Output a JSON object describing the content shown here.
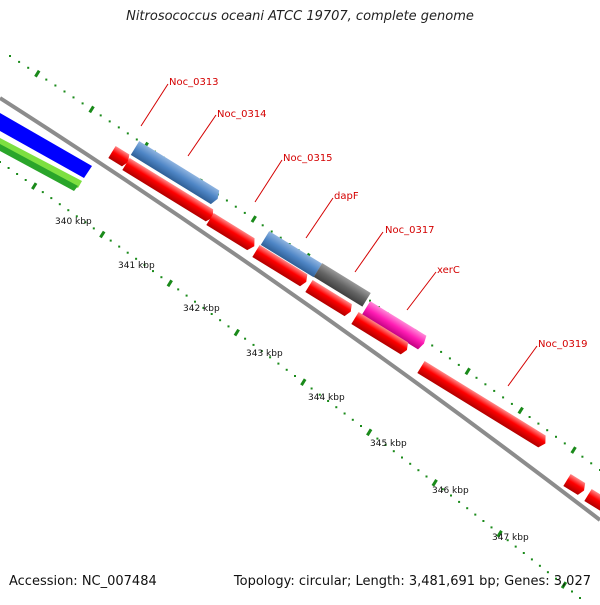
{
  "title": "Nitrosococcus oceani ATCC 19707, complete genome",
  "footer": {
    "accession": "Accession: NC_007484",
    "summary": "Topology: circular; Length: 3,481,691 bp; Genes: 3,027"
  },
  "scale_ticks": [
    {
      "label": "340 kbp",
      "kbp": 340
    },
    {
      "label": "341 kbp",
      "kbp": 341
    },
    {
      "label": "342 kbp",
      "kbp": 342
    },
    {
      "label": "343 kbp",
      "kbp": 343
    },
    {
      "label": "344 kbp",
      "kbp": 344
    },
    {
      "label": "345 kbp",
      "kbp": 345
    },
    {
      "label": "346 kbp",
      "kbp": 346
    },
    {
      "label": "347 kbp",
      "kbp": 347
    }
  ],
  "gene_labels": [
    "Noc_0313",
    "Noc_0314",
    "Noc_0315",
    "dapF",
    "Noc_0317",
    "xerC",
    "Noc_0319"
  ],
  "colors": {
    "cds": "#ff0000",
    "cog_blue": "#4f86c6",
    "cog_gray": "#646464",
    "cog_magenta": "#ff1cb4",
    "ring_blue": "#0000ff",
    "ring_green": "#2aa52a",
    "ring_lime": "#7de041",
    "tick_green": "#1a8a1a",
    "backbone": "#8c8c8c",
    "label_red": "#d40000"
  }
}
